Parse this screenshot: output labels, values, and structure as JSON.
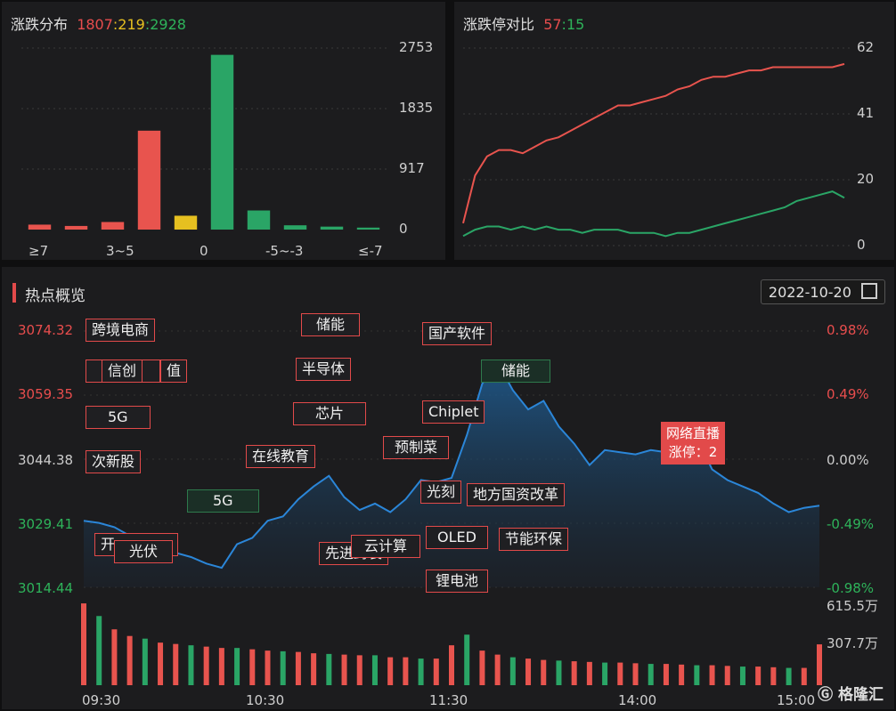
{
  "distribution": {
    "title": "涨跌分布",
    "up": "1807",
    "flat": "219",
    "down": "2928",
    "sep": ":",
    "y_ticks": [
      "2753",
      "1835",
      "917",
      "0"
    ],
    "x_ticks": [
      "≥7",
      "3~5",
      "0",
      "-5~-3",
      "≤-7"
    ]
  },
  "limit": {
    "title": "涨跌停对比",
    "up": "57",
    "down": "15",
    "sep": ":",
    "y_ticks": [
      "62",
      "41",
      "20",
      "0"
    ]
  },
  "hot": {
    "title": "热点概览",
    "date": "2022-10-20",
    "y_left": [
      "3074.32",
      "3059.35",
      "3044.38",
      "3029.41",
      "3014.44"
    ],
    "y_right": [
      "0.98%",
      "0.49%",
      "0.00%",
      "-0.49%",
      "-0.98%"
    ],
    "vol_ticks": [
      "615.5万",
      "307.7万"
    ],
    "x_ticks": [
      "09:30",
      "10:30",
      "11:30",
      "14:00",
      "15:00"
    ],
    "tags": [
      "跨境电商",
      "信创",
      "值",
      "5G",
      "次新股",
      "开",
      "光伏",
      "5G",
      "在线教育",
      "储能",
      "半导体",
      "芯片",
      "先进封装",
      "云计算",
      "预制菜",
      "光刻",
      "国产软件",
      "储能",
      "Chiplet",
      "OLED",
      "地方国资改革",
      "节能环保",
      "锂电池"
    ],
    "callout_line1": "网络直播",
    "callout_line2": "涨停：2",
    "logo": "格隆汇"
  },
  "chart_data": [
    {
      "type": "bar",
      "title": "涨跌分布",
      "categories": [
        "≥7",
        "",
        "3~5",
        "",
        "0",
        "",
        "",
        "-5~-3",
        "",
        "≤-7"
      ],
      "values": [
        75,
        55,
        115,
        1500,
        210,
        2650,
        290,
        65,
        45,
        30
      ],
      "colors": [
        "#e8544e",
        "#e8544e",
        "#e8544e",
        "#e8544e",
        "#e6c020",
        "#2aa566",
        "#2aa566",
        "#2aa566",
        "#2aa566",
        "#2aa566"
      ],
      "ylim": [
        0,
        2753
      ]
    },
    {
      "type": "line",
      "title": "涨跌停对比",
      "ylim": [
        0,
        62
      ],
      "series": [
        {
          "color": "#e8544e",
          "values": [
            7,
            22,
            28,
            30,
            30,
            29,
            31,
            33,
            34,
            36,
            38,
            40,
            42,
            44,
            44,
            45,
            46,
            47,
            49,
            50,
            52,
            53,
            53,
            54,
            55,
            55,
            56,
            56,
            56,
            56,
            56,
            56,
            57
          ]
        },
        {
          "color": "#2aa566",
          "values": [
            3,
            5,
            6,
            6,
            5,
            6,
            5,
            6,
            5,
            5,
            4,
            5,
            5,
            5,
            4,
            4,
            4,
            3,
            4,
            4,
            5,
            6,
            7,
            8,
            9,
            10,
            11,
            12,
            14,
            15,
            16,
            17,
            15
          ]
        }
      ]
    },
    {
      "type": "area",
      "title": "热点概览",
      "ylim": [
        3014.44,
        3074.32
      ],
      "x": [
        "09:30",
        "09:35",
        "09:40",
        "09:45",
        "09:50",
        "09:55",
        "10:00",
        "10:05",
        "10:10",
        "10:15",
        "10:20",
        "10:25",
        "10:30",
        "10:35",
        "10:40",
        "10:45",
        "10:50",
        "10:55",
        "11:00",
        "11:05",
        "11:10",
        "11:15",
        "11:20",
        "11:25",
        "11:30",
        "13:05",
        "13:10",
        "13:15",
        "13:20",
        "13:25",
        "13:30",
        "13:35",
        "13:40",
        "13:45",
        "13:50",
        "13:55",
        "14:00",
        "14:05",
        "14:10",
        "14:15",
        "14:20",
        "14:25",
        "14:30",
        "14:35",
        "14:40",
        "14:45",
        "14:50",
        "14:55",
        "15:00"
      ],
      "values": [
        3030.0,
        3029.5,
        3028.5,
        3026.5,
        3025.0,
        3023.5,
        3022.5,
        3021.5,
        3020.0,
        3019.0,
        3024.5,
        3026.0,
        3030.0,
        3031.0,
        3035.0,
        3038.0,
        3040.5,
        3035.5,
        3032.5,
        3034.0,
        3032.0,
        3035.0,
        3039.5,
        3039.0,
        3040.0,
        3050.0,
        3062.0,
        3067.0,
        3060.5,
        3056.0,
        3058.0,
        3052.0,
        3048.0,
        3043.0,
        3046.5,
        3046.0,
        3045.5,
        3046.5,
        3046.0,
        3048.0,
        3049.5,
        3042.0,
        3039.5,
        3038.0,
        3036.5,
        3034.0,
        3032.0,
        3033.0,
        3033.5
      ],
      "volume": [
        615,
        520,
        420,
        370,
        350,
        320,
        310,
        300,
        290,
        280,
        280,
        270,
        260,
        255,
        250,
        240,
        235,
        230,
        225,
        225,
        210,
        210,
        200,
        200,
        300,
        380,
        260,
        230,
        210,
        200,
        190,
        185,
        180,
        175,
        170,
        170,
        165,
        160,
        160,
        155,
        150,
        150,
        145,
        140,
        140,
        135,
        130,
        130,
        307
      ],
      "vol_ylim": [
        0,
        615.5
      ]
    }
  ]
}
